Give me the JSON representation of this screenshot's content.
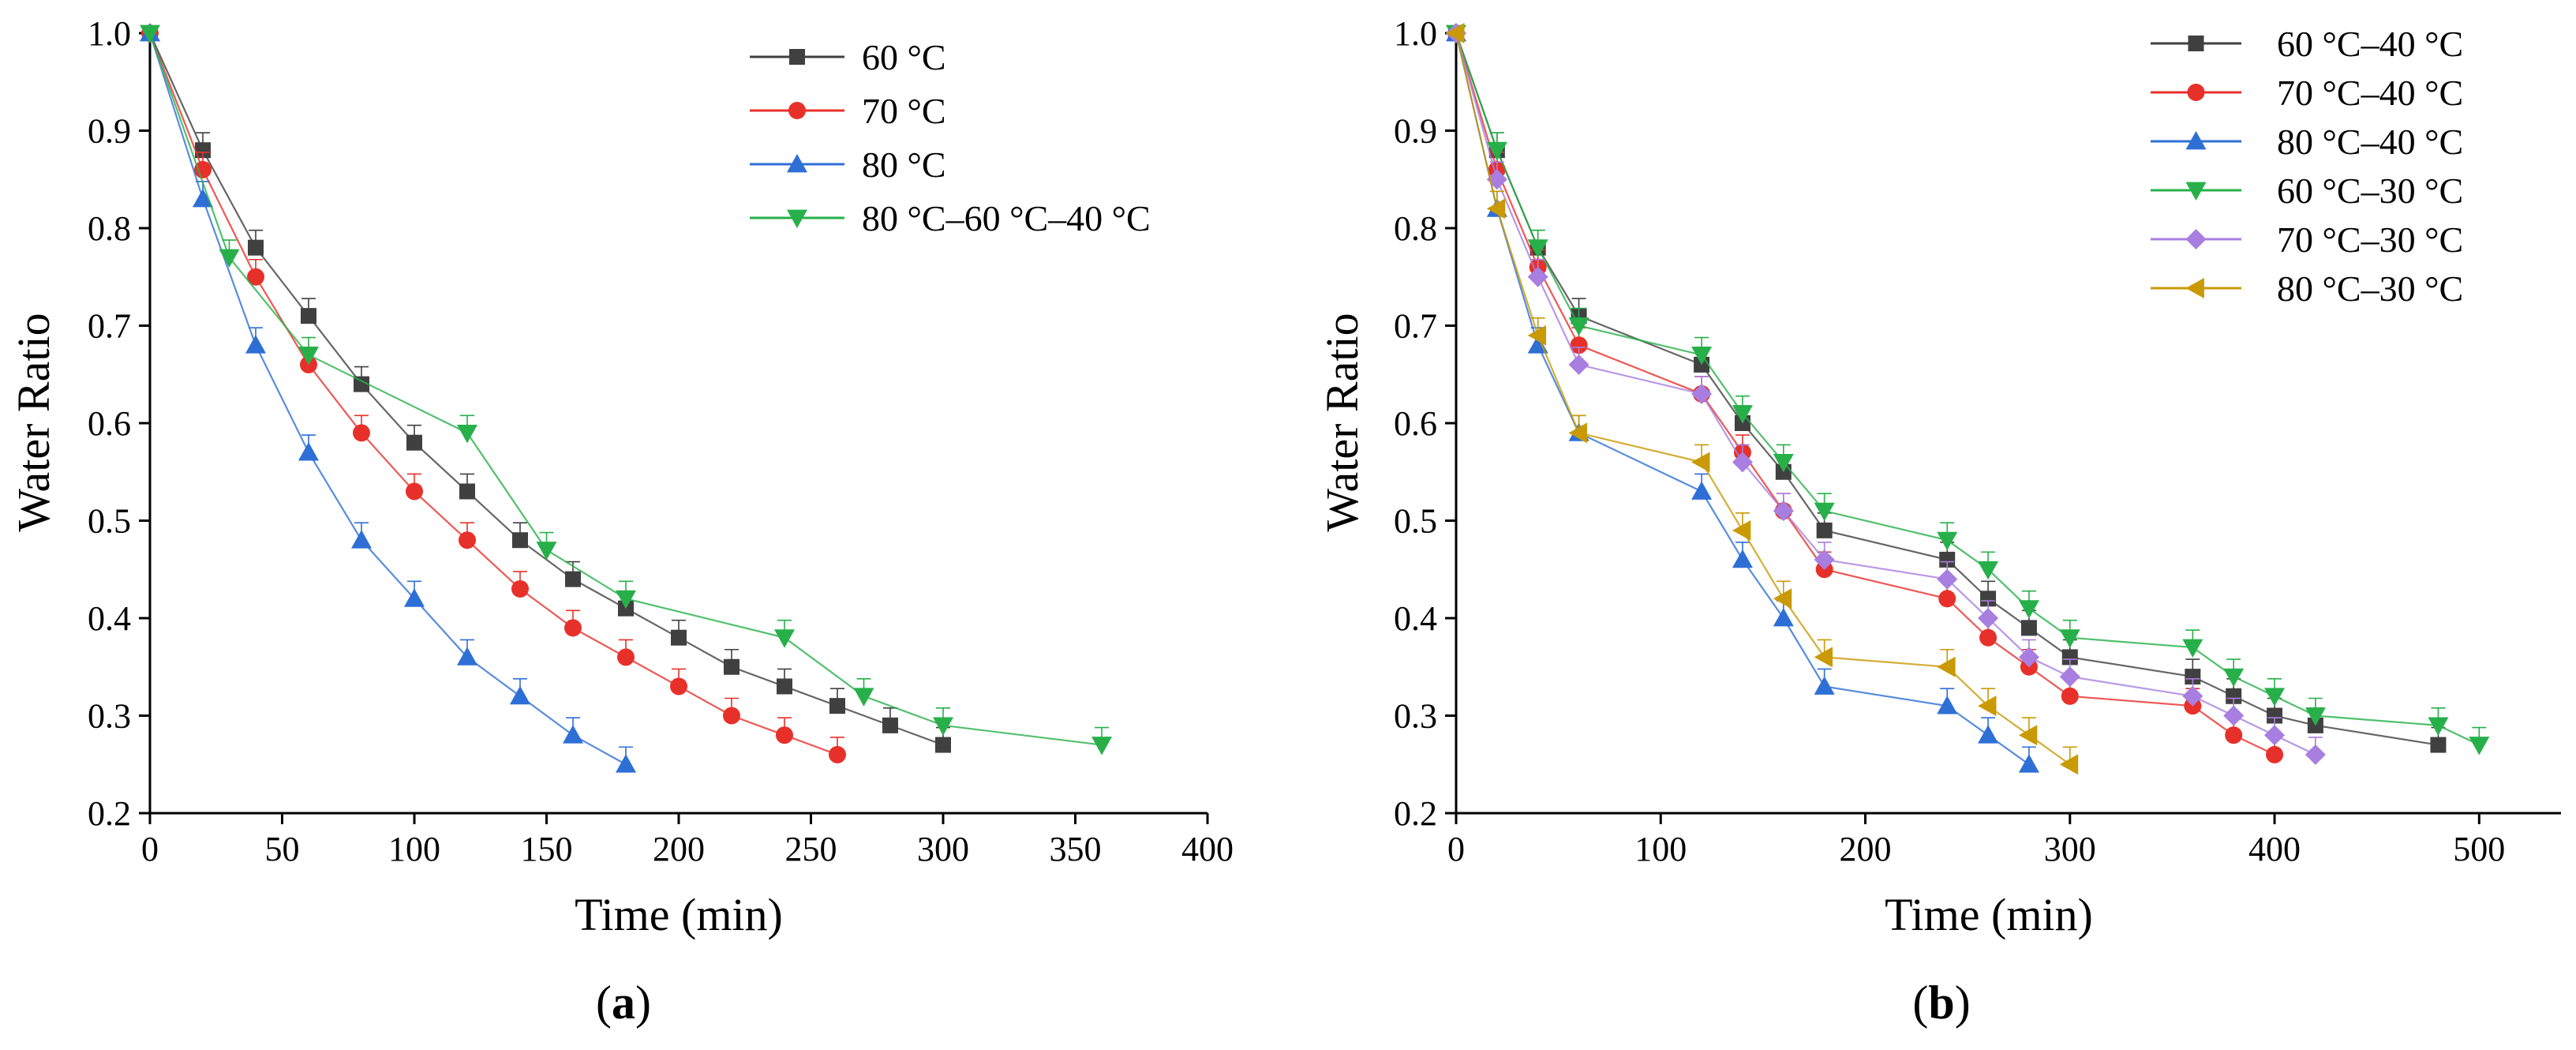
{
  "chart_data": [
    {
      "type": "line",
      "panel_label": "a",
      "xlabel": "Time (min)",
      "ylabel": "Water Ratio",
      "xlim": [
        0,
        400
      ],
      "ylim": [
        0.2,
        1.0
      ],
      "xticks": [
        0,
        50,
        100,
        150,
        200,
        250,
        300,
        350,
        400
      ],
      "yticks": [
        0.2,
        0.3,
        0.4,
        0.5,
        0.6,
        0.7,
        0.8,
        0.9,
        1.0
      ],
      "legend_position": "top-right",
      "series": [
        {
          "name": "60 °C",
          "color": "#404040",
          "marker": "square",
          "x": [
            0,
            20,
            40,
            60,
            80,
            100,
            120,
            140,
            160,
            180,
            200,
            220,
            240,
            260,
            280,
            300
          ],
          "y": [
            1.0,
            0.88,
            0.78,
            0.71,
            0.64,
            0.58,
            0.53,
            0.48,
            0.44,
            0.41,
            0.38,
            0.35,
            0.33,
            0.31,
            0.29,
            0.27
          ]
        },
        {
          "name": "70 °C",
          "color": "#e8302a",
          "marker": "circle",
          "x": [
            0,
            20,
            40,
            60,
            80,
            100,
            120,
            140,
            160,
            180,
            200,
            220,
            240,
            260
          ],
          "y": [
            1.0,
            0.86,
            0.75,
            0.66,
            0.59,
            0.53,
            0.48,
            0.43,
            0.39,
            0.36,
            0.33,
            0.3,
            0.28,
            0.26
          ]
        },
        {
          "name": "80 °C",
          "color": "#2e6fd6",
          "marker": "triangle-up",
          "x": [
            0,
            20,
            40,
            60,
            80,
            100,
            120,
            140,
            160,
            180
          ],
          "y": [
            1.0,
            0.83,
            0.68,
            0.57,
            0.48,
            0.42,
            0.36,
            0.32,
            0.28,
            0.25
          ]
        },
        {
          "name": "80 °C–60 °C–40 °C",
          "color": "#27b04a",
          "marker": "triangle-down",
          "x": [
            0,
            30,
            60,
            120,
            150,
            180,
            240,
            270,
            300,
            360
          ],
          "y": [
            1.0,
            0.77,
            0.67,
            0.59,
            0.47,
            0.42,
            0.38,
            0.32,
            0.29,
            0.27
          ]
        }
      ]
    },
    {
      "type": "line",
      "panel_label": "b",
      "xlabel": "Time (min)",
      "ylabel": "Water Ratio",
      "xlim": [
        0,
        540
      ],
      "ylim": [
        0.2,
        1.0
      ],
      "xticks": [
        0,
        100,
        200,
        300,
        400,
        500
      ],
      "yticks": [
        0.2,
        0.3,
        0.4,
        0.5,
        0.6,
        0.7,
        0.8,
        0.9,
        1.0
      ],
      "legend_position": "top-right",
      "series": [
        {
          "name": "60 °C–40 °C",
          "color": "#404040",
          "marker": "square",
          "x": [
            0,
            20,
            40,
            60,
            120,
            140,
            160,
            180,
            240,
            260,
            280,
            300,
            360,
            380,
            400,
            420,
            480
          ],
          "y": [
            1.0,
            0.88,
            0.78,
            0.71,
            0.66,
            0.6,
            0.55,
            0.49,
            0.46,
            0.42,
            0.39,
            0.36,
            0.34,
            0.32,
            0.3,
            0.29,
            0.27
          ]
        },
        {
          "name": "70 °C–40 °C",
          "color": "#e8302a",
          "marker": "circle",
          "x": [
            0,
            20,
            40,
            60,
            120,
            140,
            160,
            180,
            240,
            260,
            280,
            300,
            360,
            380,
            400
          ],
          "y": [
            1.0,
            0.86,
            0.76,
            0.68,
            0.63,
            0.57,
            0.51,
            0.45,
            0.42,
            0.38,
            0.35,
            0.32,
            0.31,
            0.28,
            0.26
          ]
        },
        {
          "name": "80 °C–40 °C",
          "color": "#2e6fd6",
          "marker": "triangle-up",
          "x": [
            0,
            20,
            40,
            60,
            120,
            140,
            160,
            180,
            240,
            260,
            280
          ],
          "y": [
            1.0,
            0.82,
            0.68,
            0.59,
            0.53,
            0.46,
            0.4,
            0.33,
            0.31,
            0.28,
            0.25
          ]
        },
        {
          "name": "60 °C–30 °C",
          "color": "#27b04a",
          "marker": "triangle-down",
          "x": [
            0,
            20,
            40,
            60,
            120,
            140,
            160,
            180,
            240,
            260,
            280,
            300,
            360,
            380,
            400,
            420,
            480,
            500
          ],
          "y": [
            1.0,
            0.88,
            0.78,
            0.7,
            0.67,
            0.61,
            0.56,
            0.51,
            0.48,
            0.45,
            0.41,
            0.38,
            0.37,
            0.34,
            0.32,
            0.3,
            0.29,
            0.27
          ]
        },
        {
          "name": "70 °C–30 °C",
          "color": "#a87ee0",
          "marker": "diamond",
          "x": [
            0,
            20,
            40,
            60,
            120,
            140,
            160,
            180,
            240,
            260,
            280,
            300,
            360,
            380,
            400,
            420
          ],
          "y": [
            1.0,
            0.85,
            0.75,
            0.66,
            0.63,
            0.56,
            0.51,
            0.46,
            0.44,
            0.4,
            0.36,
            0.34,
            0.32,
            0.3,
            0.28,
            0.26
          ]
        },
        {
          "name": "80 °C–30 °C",
          "color": "#c99a06",
          "marker": "triangle-left",
          "x": [
            0,
            20,
            40,
            60,
            120,
            140,
            160,
            180,
            240,
            260,
            280,
            300
          ],
          "y": [
            1.0,
            0.82,
            0.69,
            0.59,
            0.56,
            0.49,
            0.42,
            0.36,
            0.35,
            0.31,
            0.28,
            0.25
          ]
        }
      ]
    }
  ]
}
